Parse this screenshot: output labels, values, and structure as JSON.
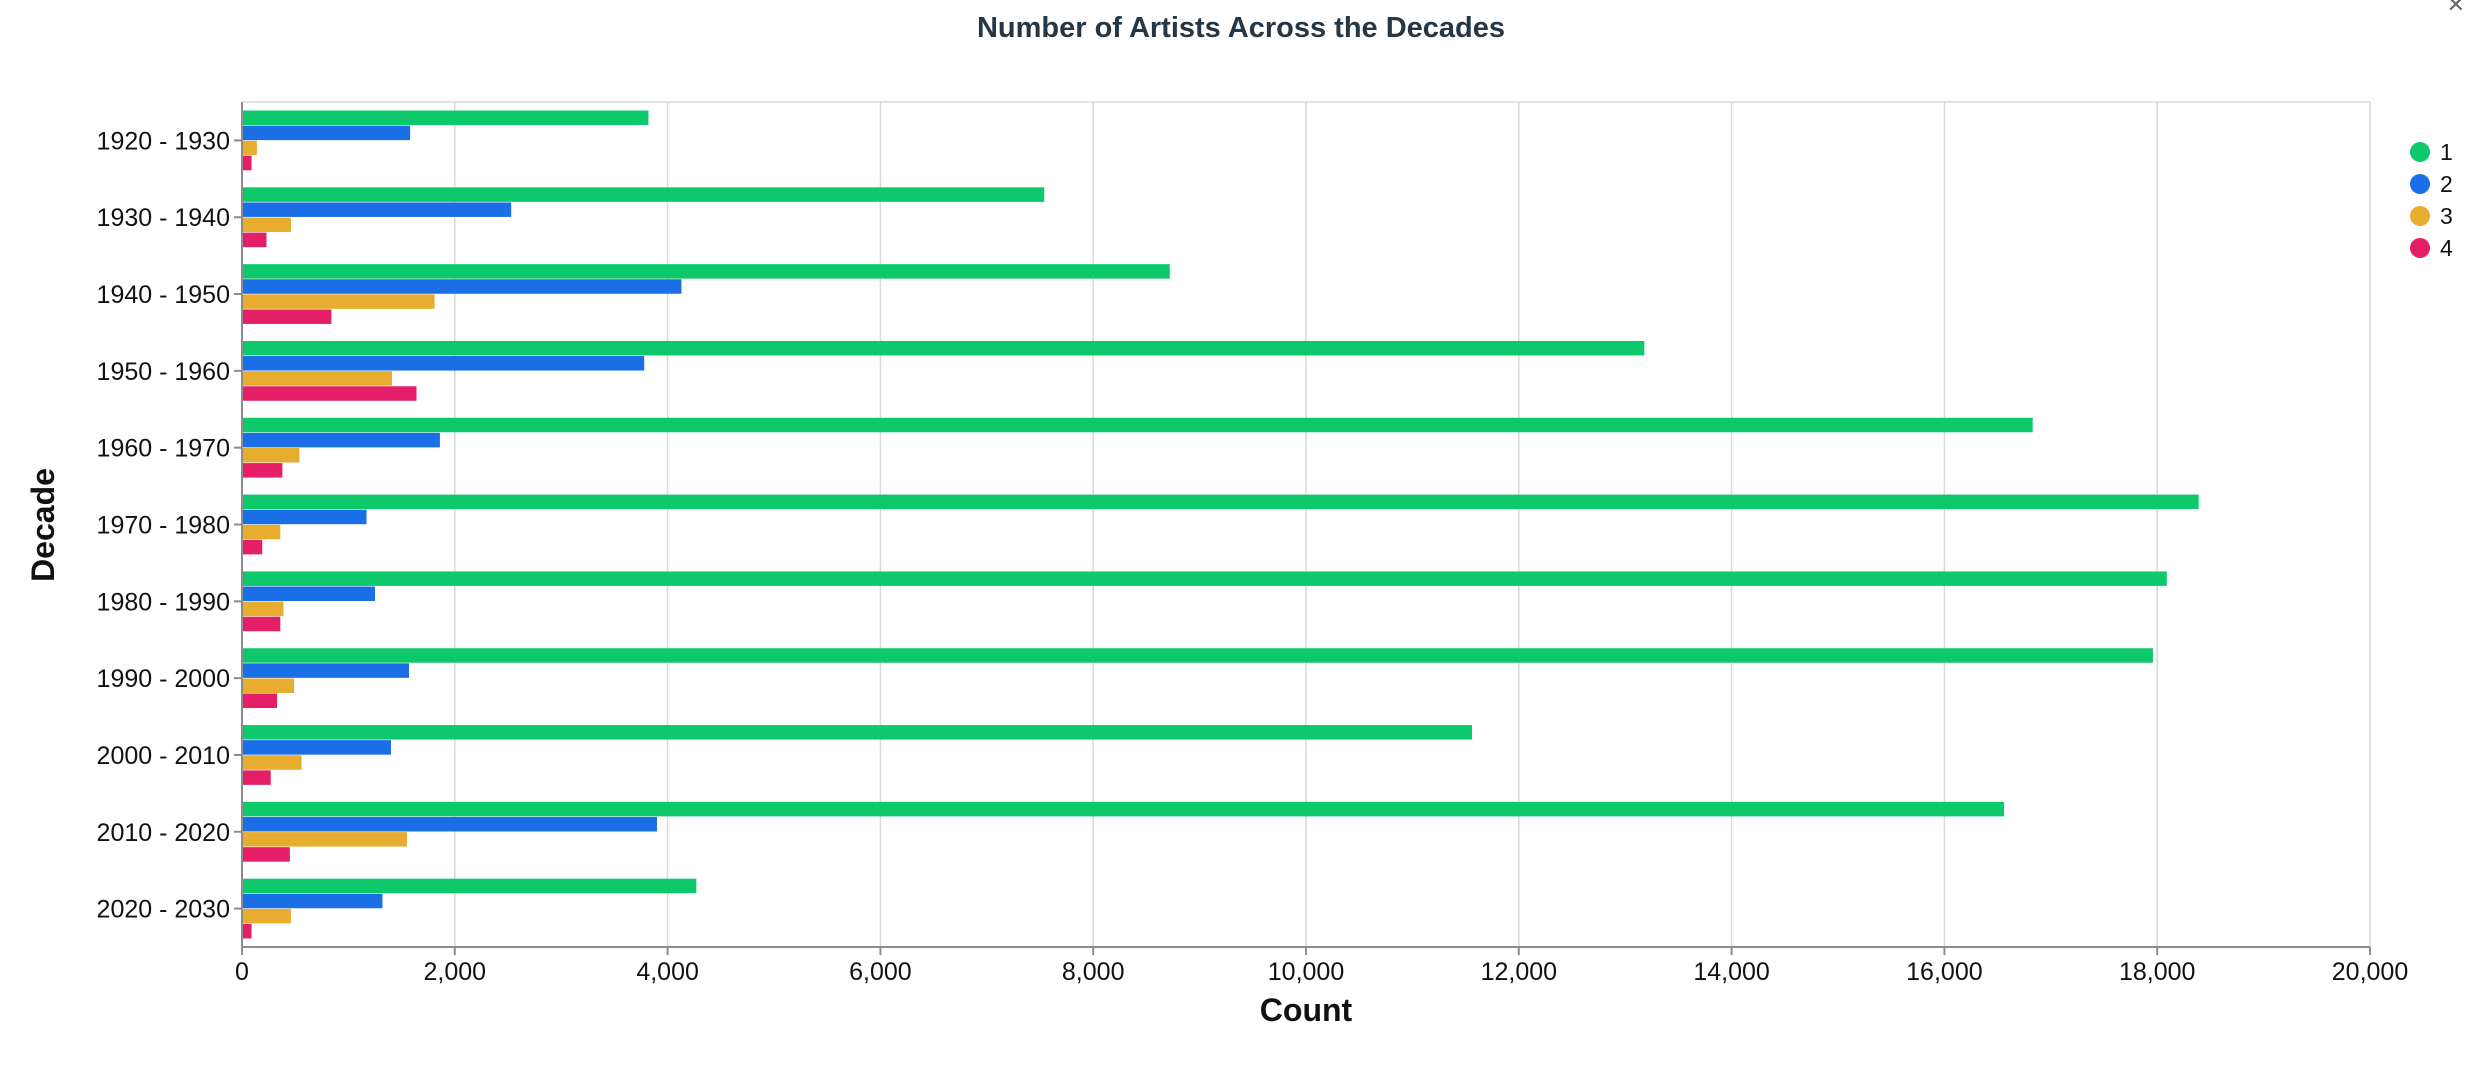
{
  "colors": {
    "series": [
      "#0ec96b",
      "#1a6ee6",
      "#e8ac2f",
      "#e41f68"
    ],
    "title": "#253746",
    "grid": "#d9d9d9",
    "axis": "#8c8c8c"
  },
  "chart_data": {
    "type": "bar",
    "orientation": "horizontal-grouped",
    "title": "Number of Artists Across the Decades",
    "xlabel": "Count",
    "ylabel": "Decade",
    "xlim": [
      0,
      20000
    ],
    "xticks": [
      0,
      2000,
      4000,
      6000,
      8000,
      10000,
      12000,
      14000,
      16000,
      18000,
      20000
    ],
    "grid": true,
    "legend_position": "right",
    "categories": [
      "1920 - 1930",
      "1930 - 1940",
      "1940 - 1950",
      "1950 - 1960",
      "1960 - 1970",
      "1970 - 1980",
      "1980 - 1990",
      "1990 - 2000",
      "2000 - 2010",
      "2010 - 2020",
      "2020 - 2030"
    ],
    "series": [
      {
        "name": "1",
        "values": [
          3820,
          7540,
          8720,
          13180,
          16830,
          18390,
          18090,
          17960,
          11560,
          16560,
          4270
        ]
      },
      {
        "name": "2",
        "values": [
          1580,
          2530,
          4130,
          3780,
          1860,
          1170,
          1250,
          1570,
          1400,
          3900,
          1320
        ]
      },
      {
        "name": "3",
        "values": [
          140,
          460,
          1810,
          1410,
          540,
          360,
          390,
          490,
          560,
          1550,
          460
        ]
      },
      {
        "name": "4",
        "values": [
          90,
          230,
          840,
          1640,
          380,
          190,
          360,
          330,
          270,
          450,
          90
        ]
      }
    ]
  }
}
